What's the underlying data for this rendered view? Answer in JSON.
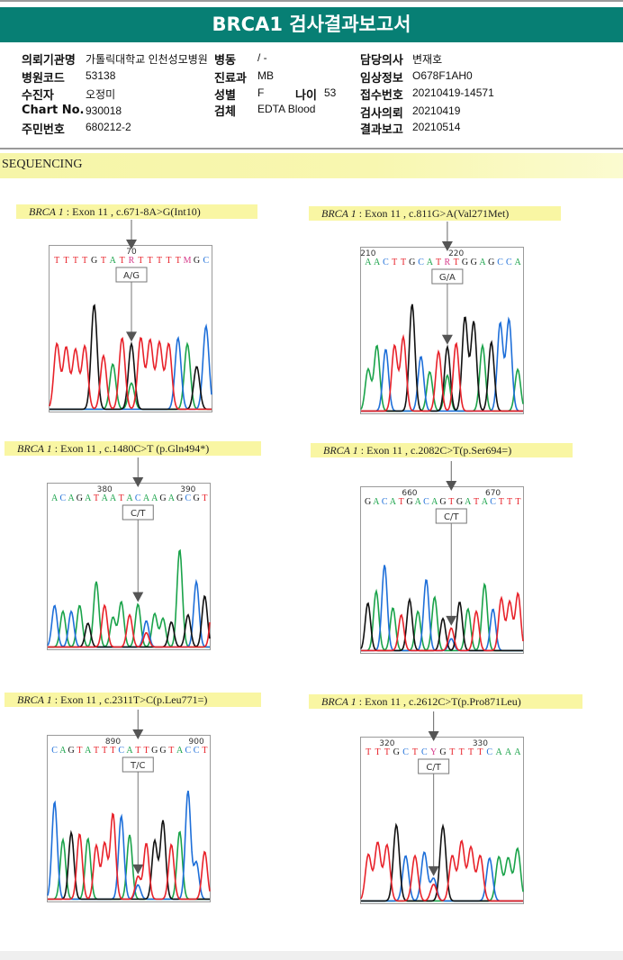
{
  "report": {
    "title": "BRCA1 검사결과보고서",
    "fields": {
      "institution": {
        "label": "의뢰기관명",
        "value": "가톨릭대학교 인천성모병원"
      },
      "ward": {
        "label": "병동",
        "value": "/ -"
      },
      "doctor": {
        "label": "담당의사",
        "value": "변재호"
      },
      "hospital_code": {
        "label": "병원코드",
        "value": "53138"
      },
      "department": {
        "label": "진료과",
        "value": "MB"
      },
      "clinical_info": {
        "label": "임상정보",
        "value": "O678F1AH0"
      },
      "patient": {
        "label": "수진자",
        "value": "오정미"
      },
      "sex": {
        "label": "성별",
        "value": "F"
      },
      "age": {
        "label": "나이",
        "value": "53"
      },
      "receipt_no": {
        "label": "접수번호",
        "value": "20210419-14571"
      },
      "chart_no": {
        "label": "Chart No.",
        "value": "930018"
      },
      "specimen": {
        "label": "검체",
        "value": "EDTA Blood"
      },
      "request_date": {
        "label": "검사의뢰",
        "value": "20210419"
      },
      "resident_no": {
        "label": "주민번호",
        "value": "680212-2"
      },
      "report_date": {
        "label": "결과보고",
        "value": "20210514"
      }
    }
  },
  "section": {
    "title": "SEQUENCING"
  },
  "base_colors": {
    "A": "#1aa34a",
    "C": "#1e6fd9",
    "G": "#111111",
    "T": "#e8222a",
    "R": "#d63a8a",
    "Y": "#d63a8a",
    "M": "#d63a8a",
    "N": "#d63a8a"
  },
  "chart_data": [
    {
      "type": "chromatogram",
      "gene": "BRCA 1",
      "caption": ": Exon 11 , c.671-8A>G(Int10)",
      "sequence": "TTTTGTATRTTTTTMGC",
      "ticks": [
        {
          "label": "70",
          "index": 8
        }
      ],
      "variant_index": 8,
      "call": "A/G",
      "peaks": [
        {
          "b": "T",
          "h": 0.55
        },
        {
          "b": "T",
          "h": 0.52
        },
        {
          "b": "T",
          "h": 0.5
        },
        {
          "b": "T",
          "h": 0.53
        },
        {
          "b": "G",
          "h": 0.88
        },
        {
          "b": "T",
          "h": 0.45
        },
        {
          "b": "A",
          "h": 0.38
        },
        {
          "b": "T",
          "h": 0.6
        },
        {
          "b": "G",
          "h": 0.55,
          "minor": {
            "b": "A",
            "h": 0.22
          }
        },
        {
          "b": "T",
          "h": 0.6
        },
        {
          "b": "T",
          "h": 0.58
        },
        {
          "b": "T",
          "h": 0.56
        },
        {
          "b": "T",
          "h": 0.55
        },
        {
          "b": "C",
          "h": 0.6
        },
        {
          "b": "A",
          "h": 0.55
        },
        {
          "b": "G",
          "h": 0.36
        },
        {
          "b": "C",
          "h": 0.7
        }
      ]
    },
    {
      "type": "chromatogram",
      "gene": "BRCA 1",
      "caption": ": Exon 11 , c.811G>A(Val271Met)",
      "sequence": "AACTTGCATRTGGAGCCA",
      "ticks": [
        {
          "label": "210",
          "index": 0
        },
        {
          "label": "220",
          "index": 10
        }
      ],
      "variant_index": 9,
      "call": "G/A",
      "peaks": [
        {
          "b": "A",
          "h": 0.35
        },
        {
          "b": "A",
          "h": 0.55
        },
        {
          "b": "C",
          "h": 0.52
        },
        {
          "b": "T",
          "h": 0.55
        },
        {
          "b": "T",
          "h": 0.62
        },
        {
          "b": "G",
          "h": 0.9
        },
        {
          "b": "C",
          "h": 0.46
        },
        {
          "b": "A",
          "h": 0.33
        },
        {
          "b": "T",
          "h": 0.5
        },
        {
          "b": "G",
          "h": 0.54,
          "minor": {
            "b": "A",
            "h": 0.3
          }
        },
        {
          "b": "T",
          "h": 0.57
        },
        {
          "b": "G",
          "h": 0.79
        },
        {
          "b": "G",
          "h": 0.75
        },
        {
          "b": "A",
          "h": 0.55
        },
        {
          "b": "G",
          "h": 0.58
        },
        {
          "b": "C",
          "h": 0.74
        },
        {
          "b": "C",
          "h": 0.77
        },
        {
          "b": "A",
          "h": 0.35
        }
      ]
    },
    {
      "type": "chromatogram",
      "gene": "BRCA 1",
      "caption": ": Exon 11 , c.1480C>T (p.Gln494*)",
      "sequence": "ACAGATAATACAAGAGCGT",
      "ticks": [
        {
          "label": "380",
          "index": 6
        },
        {
          "label": "390",
          "index": 16
        }
      ],
      "variant_index": 10,
      "call": "C/T",
      "peaks": [
        {
          "b": "C",
          "h": 0.35
        },
        {
          "b": "A",
          "h": 0.3
        },
        {
          "b": "C",
          "h": 0.3
        },
        {
          "b": "A",
          "h": 0.35
        },
        {
          "b": "G",
          "h": 0.2
        },
        {
          "b": "A",
          "h": 0.55
        },
        {
          "b": "T",
          "h": 0.35
        },
        {
          "b": "A",
          "h": 0.25
        },
        {
          "b": "A",
          "h": 0.38
        },
        {
          "b": "T",
          "h": 0.27
        },
        {
          "b": "A",
          "h": 0.36
        },
        {
          "b": "C",
          "h": 0.22,
          "minor": {
            "b": "T",
            "h": 0.12
          }
        },
        {
          "b": "A",
          "h": 0.28
        },
        {
          "b": "A",
          "h": 0.24
        },
        {
          "b": "G",
          "h": 0.21
        },
        {
          "b": "A",
          "h": 0.82
        },
        {
          "b": "G",
          "h": 0.27
        },
        {
          "b": "C",
          "h": 0.55
        },
        {
          "b": "G",
          "h": 0.43
        },
        {
          "b": "T",
          "h": 0.44
        }
      ]
    },
    {
      "type": "chromatogram",
      "gene": "BRCA 1",
      "caption": ": Exon 11 , c.2082C>T(p.Ser694=)",
      "sequence": "GACATGACAGTGATACTTT",
      "ticks": [
        {
          "label": "660",
          "index": 5
        },
        {
          "label": "670",
          "index": 15
        }
      ],
      "variant_index": 10,
      "call": "C/T",
      "peaks": [
        {
          "b": "G",
          "h": 0.4
        },
        {
          "b": "A",
          "h": 0.5
        },
        {
          "b": "C",
          "h": 0.72
        },
        {
          "b": "A",
          "h": 0.36
        },
        {
          "b": "T",
          "h": 0.3
        },
        {
          "b": "G",
          "h": 0.43
        },
        {
          "b": "A",
          "h": 0.33
        },
        {
          "b": "C",
          "h": 0.6
        },
        {
          "b": "A",
          "h": 0.45
        },
        {
          "b": "G",
          "h": 0.27
        },
        {
          "b": "T",
          "h": 0.19,
          "minor": {
            "b": "C",
            "h": 0.1
          }
        },
        {
          "b": "G",
          "h": 0.41
        },
        {
          "b": "A",
          "h": 0.35
        },
        {
          "b": "T",
          "h": 0.33
        },
        {
          "b": "A",
          "h": 0.56
        },
        {
          "b": "C",
          "h": 0.35
        },
        {
          "b": "T",
          "h": 0.44
        },
        {
          "b": "T",
          "h": 0.41
        },
        {
          "b": "T",
          "h": 0.48
        }
      ]
    },
    {
      "type": "chromatogram",
      "gene": "BRCA 1",
      "caption": ": Exon 11 , c.2311T>C(p.Leu771=)",
      "sequence": "CAGTATTTCATTGGTACCT",
      "ticks": [
        {
          "label": "890",
          "index": 7
        },
        {
          "label": "900",
          "index": 17
        }
      ],
      "variant_index": 10,
      "call": "T/C",
      "peaks": [
        {
          "b": "C",
          "h": 0.82
        },
        {
          "b": "A",
          "h": 0.5
        },
        {
          "b": "G",
          "h": 0.56
        },
        {
          "b": "T",
          "h": 0.55
        },
        {
          "b": "A",
          "h": 0.51
        },
        {
          "b": "T",
          "h": 0.45
        },
        {
          "b": "T",
          "h": 0.47
        },
        {
          "b": "T",
          "h": 0.72
        },
        {
          "b": "C",
          "h": 0.7
        },
        {
          "b": "A",
          "h": 0.54
        },
        {
          "b": "T",
          "h": 0.19,
          "minor": {
            "b": "C",
            "h": 0.12
          }
        },
        {
          "b": "T",
          "h": 0.47
        },
        {
          "b": "G",
          "h": 0.49
        },
        {
          "b": "G",
          "h": 0.66
        },
        {
          "b": "T",
          "h": 0.46
        },
        {
          "b": "A",
          "h": 0.57
        },
        {
          "b": "C",
          "h": 0.91
        },
        {
          "b": "C",
          "h": 0.31
        },
        {
          "b": "T",
          "h": 0.4
        }
      ]
    },
    {
      "type": "chromatogram",
      "gene": "BRCA 1",
      "caption": ": Exon 11 , c.2612C>T(p.Pro871Leu)",
      "sequence": "TTTGCTCYGTTTTCAAA",
      "ticks": [
        {
          "label": "320",
          "index": 2
        },
        {
          "label": "330",
          "index": 12
        }
      ],
      "variant_index": 7,
      "call": "C/T",
      "peaks": [
        {
          "b": "T",
          "h": 0.39
        },
        {
          "b": "T",
          "h": 0.49
        },
        {
          "b": "T",
          "h": 0.47
        },
        {
          "b": "G",
          "h": 0.64
        },
        {
          "b": "C",
          "h": 0.38
        },
        {
          "b": "T",
          "h": 0.38
        },
        {
          "b": "C",
          "h": 0.41
        },
        {
          "b": "C",
          "h": 0.19,
          "minor": {
            "b": "T",
            "h": 0.14
          }
        },
        {
          "b": "G",
          "h": 0.63
        },
        {
          "b": "T",
          "h": 0.38
        },
        {
          "b": "T",
          "h": 0.5
        },
        {
          "b": "T",
          "h": 0.45
        },
        {
          "b": "T",
          "h": 0.38
        },
        {
          "b": "C",
          "h": 0.36
        },
        {
          "b": "A",
          "h": 0.37
        },
        {
          "b": "A",
          "h": 0.36
        },
        {
          "b": "A",
          "h": 0.44
        }
      ]
    }
  ]
}
